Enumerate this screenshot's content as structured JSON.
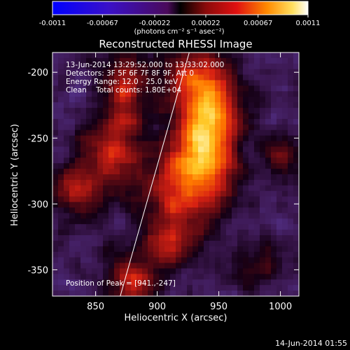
{
  "colorbar": {
    "ticks": [
      "-0.0011",
      "-0.00067",
      "-0.00022",
      "0.00022",
      "0.00067",
      "0.0011"
    ],
    "units_label": "(photons cm⁻² s⁻¹ asec⁻²)",
    "min": -0.0011,
    "max": 0.0011
  },
  "chart_data": {
    "type": "heatmap",
    "title": "Reconstructed RHESSI Image",
    "xlabel": "Heliocentric X (arcsec)",
    "ylabel": "Heliocentric Y (arcsec)",
    "xlim": [
      815,
      1015
    ],
    "ylim": [
      -370,
      -185
    ],
    "x_ticks": [
      850,
      900,
      950,
      1000
    ],
    "y_ticks": [
      -200,
      -250,
      -300,
      -350
    ],
    "info_lines": [
      "13-Jun-2014 13:29:52.000 to 13:33:02.000",
      "Detectors: 3F 5F 6F 7F 8F 9F, Att 0",
      "Energy Range: 12.0 - 25.0 keV",
      "Clean    Total counts: 1.80E+04"
    ],
    "peak_label": "Position of Peak = [941.,-247]",
    "peak": {
      "x": 941,
      "y": -247
    },
    "limb_line": {
      "x1": 870,
      "y1": -370,
      "x2": 926,
      "y2": -185
    }
  },
  "footer": {
    "timestamp": "14-Jun-2014 01:55"
  }
}
